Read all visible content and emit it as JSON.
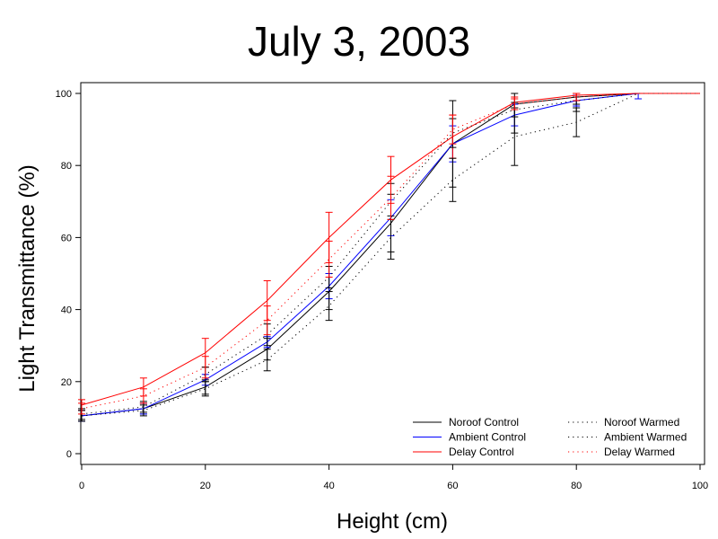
{
  "chart_data": {
    "type": "line",
    "title": "July 3, 2003",
    "xlabel": "Height (cm)",
    "ylabel": "Light Transmittance (%)",
    "xlim": [
      0,
      100
    ],
    "ylim": [
      0,
      100
    ],
    "xticks": [
      0,
      20,
      40,
      60,
      80,
      100
    ],
    "yticks": [
      0,
      20,
      40,
      60,
      80,
      100
    ],
    "grid": false,
    "legend_position": "bottom-right",
    "x": [
      0,
      10,
      20,
      30,
      40,
      50,
      60,
      70,
      80,
      90,
      100
    ],
    "series": [
      {
        "name": "Noroof Control",
        "color": "#000000",
        "style": "solid",
        "values": [
          10.5,
          12.5,
          18.5,
          29,
          45,
          64,
          86,
          97,
          99,
          100,
          100
        ],
        "error": [
          1.5,
          1.5,
          2,
          3,
          5,
          8,
          12,
          8,
          4,
          0,
          0
        ]
      },
      {
        "name": "Ambient Control",
        "color": "#0000ff",
        "style": "solid",
        "values": [
          10.5,
          12.5,
          20.5,
          31,
          46.5,
          65.5,
          86,
          94,
          98,
          100,
          100
        ],
        "error": [
          1.5,
          1.5,
          1.5,
          1.5,
          3.5,
          5,
          5,
          3,
          1.5,
          1.5,
          0
        ]
      },
      {
        "name": "Delay Control",
        "color": "#ff0000",
        "style": "solid",
        "values": [
          13.5,
          18.5,
          28,
          42.5,
          60,
          76,
          88,
          97.5,
          99.5,
          100,
          100
        ],
        "error": [
          1.5,
          2.5,
          4,
          5.5,
          7,
          6.5,
          6,
          1.5,
          0.5,
          0,
          0
        ]
      },
      {
        "name": "Noroof Warmed",
        "color": "#000000",
        "style": "dotted",
        "values": [
          10.5,
          12,
          18,
          26,
          41,
          60,
          76,
          88,
          92,
          100,
          100
        ],
        "error": [
          1.5,
          1.5,
          2,
          3,
          4,
          6,
          6,
          8,
          4,
          0,
          0
        ]
      },
      {
        "name": "Ambient Warmed",
        "color": "#000000",
        "style": "dotted",
        "values": [
          11,
          13,
          22,
          33,
          49,
          70,
          89,
          95.5,
          98,
          100,
          100
        ],
        "error": [
          1.5,
          1.5,
          2,
          3,
          3,
          5,
          4,
          2,
          1,
          0,
          0
        ]
      },
      {
        "name": "Delay Warmed",
        "color": "#ff0000",
        "style": "dotted",
        "values": [
          12.5,
          16,
          24,
          37,
          54,
          71,
          90,
          97,
          99,
          100,
          100
        ],
        "error": [
          1.5,
          2,
          3,
          4,
          5,
          6,
          4,
          1.5,
          1,
          0,
          0
        ]
      }
    ]
  }
}
